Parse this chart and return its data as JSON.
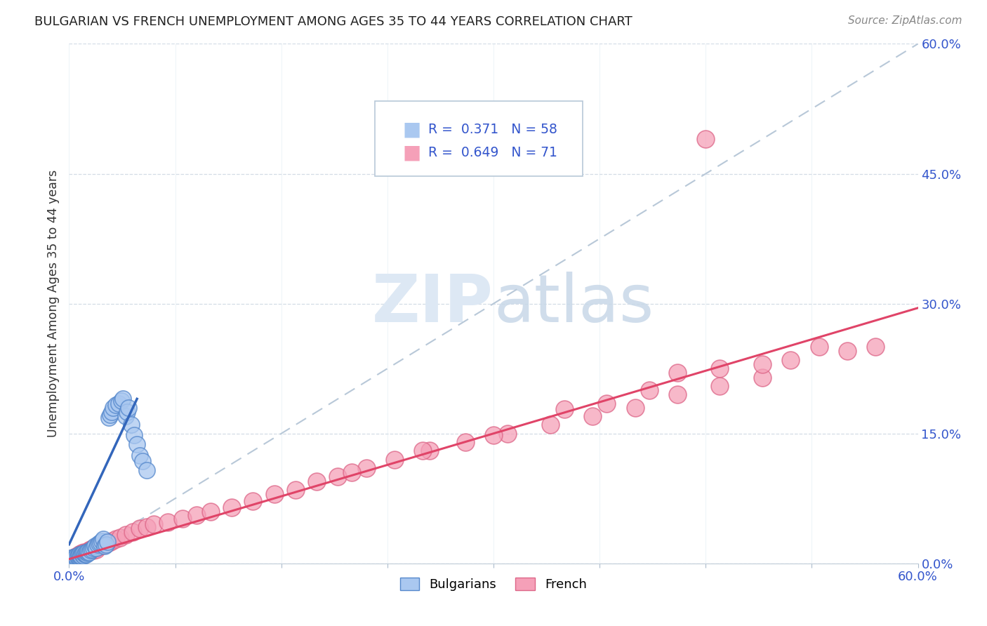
{
  "title": "BULGARIAN VS FRENCH UNEMPLOYMENT AMONG AGES 35 TO 44 YEARS CORRELATION CHART",
  "source": "Source: ZipAtlas.com",
  "ylabel": "Unemployment Among Ages 35 to 44 years",
  "xlim": [
    0,
    0.6
  ],
  "ylim": [
    0,
    0.6
  ],
  "ytick_labels": [
    "0.0%",
    "15.0%",
    "30.0%",
    "45.0%",
    "60.0%"
  ],
  "ytick_vals": [
    0.0,
    0.15,
    0.3,
    0.45,
    0.6
  ],
  "bulgarian_color": "#aac8f0",
  "bulgarian_edge": "#5588cc",
  "french_color": "#f5a0b8",
  "french_edge": "#dd6688",
  "bulgarian_R": 0.371,
  "bulgarian_N": 58,
  "french_R": 0.649,
  "french_N": 71,
  "diagonal_color": "#b8c8d8",
  "bulgarian_line_color": "#3366bb",
  "french_line_color": "#e04468",
  "watermark_color": "#dde8f4",
  "stat_color": "#3355cc",
  "bg_color": "#ffffff",
  "bulgarian_x": [
    0.002,
    0.003,
    0.003,
    0.004,
    0.004,
    0.005,
    0.005,
    0.005,
    0.006,
    0.006,
    0.006,
    0.007,
    0.007,
    0.007,
    0.008,
    0.008,
    0.008,
    0.009,
    0.009,
    0.01,
    0.01,
    0.011,
    0.011,
    0.012,
    0.012,
    0.013,
    0.013,
    0.014,
    0.015,
    0.016,
    0.017,
    0.018,
    0.019,
    0.02,
    0.021,
    0.022,
    0.023,
    0.024,
    0.025,
    0.026,
    0.027,
    0.028,
    0.029,
    0.03,
    0.031,
    0.033,
    0.035,
    0.037,
    0.038,
    0.04,
    0.041,
    0.042,
    0.044,
    0.046,
    0.048,
    0.05,
    0.052,
    0.055
  ],
  "bulgarian_y": [
    0.006,
    0.005,
    0.007,
    0.006,
    0.005,
    0.007,
    0.006,
    0.008,
    0.007,
    0.009,
    0.008,
    0.007,
    0.009,
    0.01,
    0.008,
    0.01,
    0.009,
    0.011,
    0.01,
    0.009,
    0.012,
    0.01,
    0.011,
    0.01,
    0.013,
    0.012,
    0.014,
    0.013,
    0.015,
    0.016,
    0.018,
    0.02,
    0.018,
    0.022,
    0.023,
    0.024,
    0.026,
    0.028,
    0.02,
    0.022,
    0.025,
    0.168,
    0.172,
    0.175,
    0.18,
    0.183,
    0.185,
    0.188,
    0.19,
    0.17,
    0.175,
    0.18,
    0.16,
    0.148,
    0.138,
    0.125,
    0.118,
    0.108
  ],
  "french_x": [
    0.002,
    0.003,
    0.004,
    0.005,
    0.005,
    0.006,
    0.006,
    0.007,
    0.007,
    0.008,
    0.008,
    0.009,
    0.009,
    0.01,
    0.01,
    0.011,
    0.012,
    0.013,
    0.014,
    0.015,
    0.016,
    0.017,
    0.018,
    0.019,
    0.02,
    0.022,
    0.025,
    0.028,
    0.03,
    0.033,
    0.036,
    0.04,
    0.045,
    0.05,
    0.055,
    0.06,
    0.07,
    0.08,
    0.09,
    0.1,
    0.115,
    0.13,
    0.145,
    0.16,
    0.175,
    0.19,
    0.21,
    0.23,
    0.255,
    0.28,
    0.31,
    0.34,
    0.37,
    0.4,
    0.43,
    0.46,
    0.49,
    0.43,
    0.46,
    0.49,
    0.51,
    0.53,
    0.55,
    0.57,
    0.35,
    0.38,
    0.41,
    0.2,
    0.25,
    0.3,
    0.45
  ],
  "french_y": [
    0.005,
    0.006,
    0.006,
    0.007,
    0.008,
    0.007,
    0.009,
    0.008,
    0.01,
    0.009,
    0.011,
    0.01,
    0.012,
    0.011,
    0.013,
    0.012,
    0.013,
    0.014,
    0.015,
    0.016,
    0.017,
    0.015,
    0.018,
    0.016,
    0.019,
    0.02,
    0.022,
    0.024,
    0.026,
    0.028,
    0.03,
    0.033,
    0.036,
    0.04,
    0.042,
    0.045,
    0.048,
    0.052,
    0.056,
    0.06,
    0.065,
    0.072,
    0.08,
    0.085,
    0.095,
    0.1,
    0.11,
    0.12,
    0.13,
    0.14,
    0.15,
    0.16,
    0.17,
    0.18,
    0.195,
    0.205,
    0.215,
    0.22,
    0.225,
    0.23,
    0.235,
    0.25,
    0.245,
    0.25,
    0.178,
    0.185,
    0.2,
    0.105,
    0.13,
    0.148,
    0.49
  ]
}
